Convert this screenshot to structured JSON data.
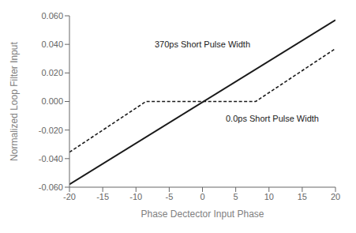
{
  "chart_data": {
    "type": "line",
    "xlabel": "Phase Dectector Input Phase",
    "ylabel": "Normalized Loop Filter Input",
    "xlim": [
      -20,
      20
    ],
    "ylim": [
      -0.06,
      0.06
    ],
    "xticks": [
      -20,
      -15,
      -10,
      -5,
      0,
      5,
      10,
      15,
      20
    ],
    "yticks": [
      {
        "value": -0.06,
        "label": "-0.060"
      },
      {
        "value": -0.04,
        "label": "-0.040"
      },
      {
        "value": -0.02,
        "label": "-0.020"
      },
      {
        "value": 0,
        "label": "0.000"
      },
      {
        "value": 0.02,
        "label": "0.020"
      },
      {
        "value": 0.04,
        "label": "0.040"
      },
      {
        "value": 0.06,
        "label": "0.060"
      }
    ],
    "grid": false,
    "series": [
      {
        "x": [
          -20,
          20
        ],
        "values": [
          -0.058,
          0.057
        ],
        "color": "#1a1a1a",
        "line_style": "solid"
      },
      {
        "x": [
          -20,
          -8.5,
          8,
          20
        ],
        "values": [
          -0.0355,
          0,
          0,
          0.03704347826086957
        ],
        "color": "#1a1a1a",
        "line_style": "dashed"
      }
    ],
    "annotations": [
      {
        "text": "370ps Short Pulse Width",
        "x": 0,
        "y": 0.036,
        "align": "center-bottom"
      },
      {
        "text": "0.0ps Short Pulse Width",
        "x": 3.5,
        "y": -0.008,
        "align": "left-top"
      }
    ]
  }
}
